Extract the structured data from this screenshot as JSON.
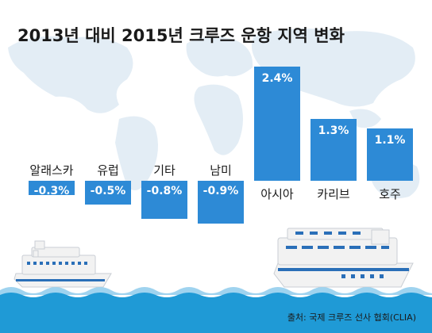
{
  "chart_data": {
    "type": "bar",
    "title": "2013년 대비 2015년 크루즈 운항 지역 변화",
    "categories": [
      "알래스카",
      "유럽",
      "기타",
      "남미",
      "아시아",
      "카리브",
      "호주"
    ],
    "values": [
      -0.3,
      -0.5,
      -0.8,
      -0.9,
      2.4,
      1.3,
      1.1
    ],
    "value_labels": [
      "-0.3%",
      "-0.5%",
      "-0.8%",
      "-0.9%",
      "2.4%",
      "1.3%",
      "1.1%"
    ],
    "source": "출처: 국제 크루즈 선사 협회(CLIA)",
    "ylim": [
      -0.9,
      2.4
    ],
    "grid": false,
    "legend": "none"
  },
  "colors": {
    "bar": "#2d8ad6",
    "bar_label": "#ffffff",
    "text": "#1a1a1a",
    "map": "#e3edf5",
    "sea_top": "#9fd3ef",
    "sea": "#1f9ad6",
    "ship_hull": "#f2f2f2",
    "ship_band": "#2a6fb8"
  },
  "decor": {
    "background": "world-map-silhouette",
    "ships": [
      "cruise-ship-icon-left",
      "cruise-ship-icon-right"
    ],
    "sea": "wave-strip"
  }
}
